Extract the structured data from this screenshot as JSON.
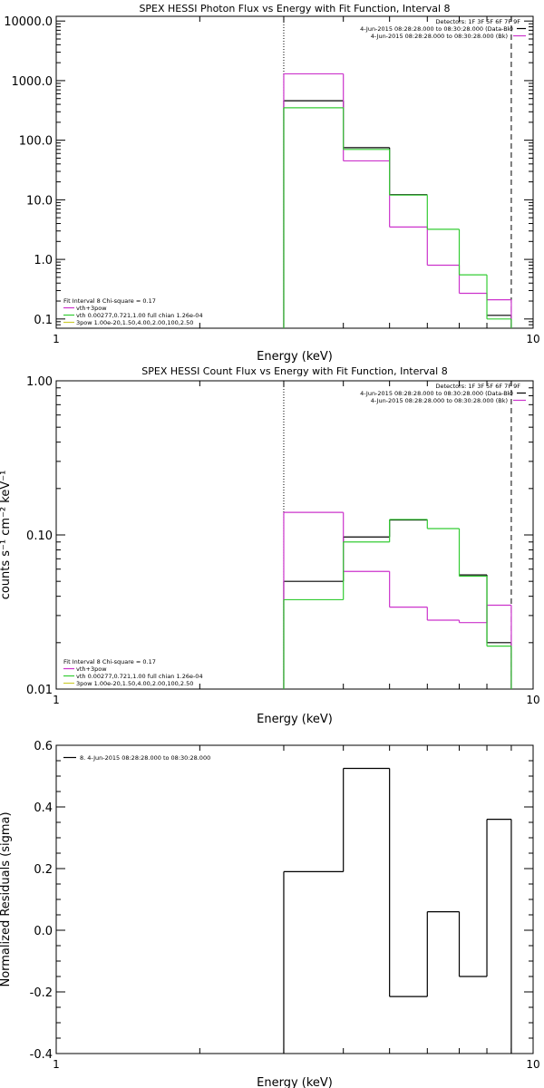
{
  "colors": {
    "background": "#ffffff",
    "axis": "#000000",
    "data": "#000000",
    "total_fit": "#cc33cc",
    "vth": "#33cc33",
    "bpow": "#cccc33",
    "bk": "#cc33cc"
  },
  "chart_data": [
    {
      "type": "line",
      "title": "SPEX HESSI Photon Flux vs Energy with Fit Function, Interval 8",
      "xlabel": "Energy (keV)",
      "ylabel": "",
      "xscale": "log",
      "yscale": "log",
      "xlim": [
        1,
        10
      ],
      "ylim": [
        0.07,
        12000
      ],
      "xticks": [
        {
          "v": 1,
          "label": "1"
        },
        {
          "v": 10,
          "label": "10"
        }
      ],
      "yticks": [
        {
          "v": 0.1,
          "label": "0.1"
        },
        {
          "v": 1,
          "label": "1.0"
        },
        {
          "v": 10,
          "label": "10.0"
        },
        {
          "v": 100,
          "label": "100.0"
        },
        {
          "v": 1000,
          "label": "1000.0"
        },
        {
          "v": 10000,
          "label": "10000.0"
        }
      ],
      "edges": [
        3.0,
        4.0,
        5.0,
        6.0,
        7.0,
        8.0,
        9.0
      ],
      "vlines": [
        {
          "x": 3.0,
          "style": "dotted"
        },
        {
          "x": 9.0,
          "style": "dashed"
        }
      ],
      "series": [
        {
          "role": "data",
          "values": [
            460,
            75,
            12.2,
            null,
            null,
            0.115
          ],
          "color_key": "data"
        },
        {
          "role": "fit",
          "values": [
            1300,
            45,
            3.5,
            0.8,
            0.27,
            0.21
          ],
          "color_key": "total_fit"
        },
        {
          "role": "fit",
          "values": [
            350,
            70,
            12,
            3.2,
            0.55,
            0.1
          ],
          "color_key": "vth"
        }
      ],
      "legend_right": {
        "placement": "top-right",
        "header": "Detectors: 1F 3F 5F 6F 7F 9F",
        "rows": [
          {
            "text": "4-Jun-2015 08:28:28.000 to 08:30:28.000 (Data-Bk)",
            "color_key": "data"
          },
          {
            "text": "4-Jun-2015 08:28:28.000 to 08:30:28.000 (Bk)",
            "color_key": "bk"
          }
        ]
      },
      "legend_left": {
        "placement": "bottom-left",
        "header": "Fit Interval 8   Chi-square = 0.17",
        "rows": [
          {
            "text": "vth+3pow",
            "color_key": "total_fit"
          },
          {
            "text": "vth 0.00277,0.721,1.00  full chian 1.26e-04",
            "color_key": "vth"
          },
          {
            "text": "3pow 1.00e-20,1.50,4.00,2.00,100,2.50",
            "color_key": "bpow"
          }
        ]
      }
    },
    {
      "type": "line",
      "title": "SPEX HESSI Count Flux vs Energy with Fit Function, Interval 8",
      "xlabel": "Energy (keV)",
      "ylabel": "counts s⁻¹ cm⁻² keV⁻¹",
      "xscale": "log",
      "yscale": "log",
      "xlim": [
        1,
        10
      ],
      "ylim": [
        0.01,
        1.0
      ],
      "xticks": [
        {
          "v": 1,
          "label": "1"
        },
        {
          "v": 10,
          "label": "10"
        }
      ],
      "yticks": [
        {
          "v": 0.01,
          "label": "0.01"
        },
        {
          "v": 0.1,
          "label": "0.10"
        },
        {
          "v": 1,
          "label": "1.00"
        }
      ],
      "edges": [
        3.0,
        4.0,
        5.0,
        6.0,
        7.0,
        8.0,
        9.0
      ],
      "vlines": [
        {
          "x": 3.0,
          "style": "dotted"
        },
        {
          "x": 9.0,
          "style": "dashed"
        }
      ],
      "series": [
        {
          "role": "data",
          "values": [
            0.05,
            0.097,
            0.125,
            null,
            0.055,
            0.02
          ],
          "color_key": "data"
        },
        {
          "role": "fit",
          "values": [
            0.14,
            0.058,
            0.034,
            0.028,
            0.027,
            0.035
          ],
          "color_key": "total_fit"
        },
        {
          "role": "fit",
          "values": [
            0.038,
            0.09,
            0.126,
            0.11,
            0.054,
            0.019
          ],
          "color_key": "vth"
        }
      ],
      "legend_right": {
        "placement": "top-right",
        "header": "Detectors: 1F 3F 5F 6F 7F 9F",
        "rows": [
          {
            "text": "4-Jun-2015 08:28:28.000 to 08:30:28.000 (Data-Bk)",
            "color_key": "data"
          },
          {
            "text": "4-Jun-2015 08:28:28.000 to 08:30:28.000 (Bk)",
            "color_key": "bk"
          }
        ]
      },
      "legend_left": {
        "placement": "bottom-left",
        "header": "Fit Interval 8   Chi-square = 0.17",
        "rows": [
          {
            "text": "vth+3pow",
            "color_key": "total_fit"
          },
          {
            "text": "vth 0.00277,0.721,1.00  full chian 1.26e-04",
            "color_key": "vth"
          },
          {
            "text": "3pow 1.00e-20,1.50,4.00,2.00,100,2.50",
            "color_key": "bpow"
          }
        ]
      }
    },
    {
      "type": "line",
      "title": "",
      "xlabel": "Energy (keV)",
      "ylabel": "Normalized Residuals (sigma)",
      "xscale": "log",
      "yscale": "linear",
      "xlim": [
        1,
        10
      ],
      "ylim": [
        -0.4,
        0.6
      ],
      "xticks": [
        {
          "v": 1,
          "label": "1"
        },
        {
          "v": 10,
          "label": "10"
        }
      ],
      "yticks": [
        {
          "v": -0.4,
          "label": "-0.4"
        },
        {
          "v": -0.2,
          "label": "-0.2"
        },
        {
          "v": 0.0,
          "label": "0.0"
        },
        {
          "v": 0.2,
          "label": "0.2"
        },
        {
          "v": 0.4,
          "label": "0.4"
        },
        {
          "v": 0.6,
          "label": "0.6"
        }
      ],
      "edges": [
        3.0,
        4.0,
        5.0,
        6.0,
        7.0,
        8.0,
        9.0
      ],
      "vlines": [],
      "series": [
        {
          "role": "data",
          "values": [
            0.19,
            0.525,
            -0.215,
            0.06,
            -0.15,
            0.36
          ],
          "color_key": "data",
          "drop_ends": true
        }
      ],
      "legend_left": {
        "placement": "top-left",
        "header": "",
        "rows": [
          {
            "text": "8.  4-Jun-2015 08:28:28.000 to 08:30:28.000",
            "color_key": "data"
          }
        ]
      }
    }
  ]
}
